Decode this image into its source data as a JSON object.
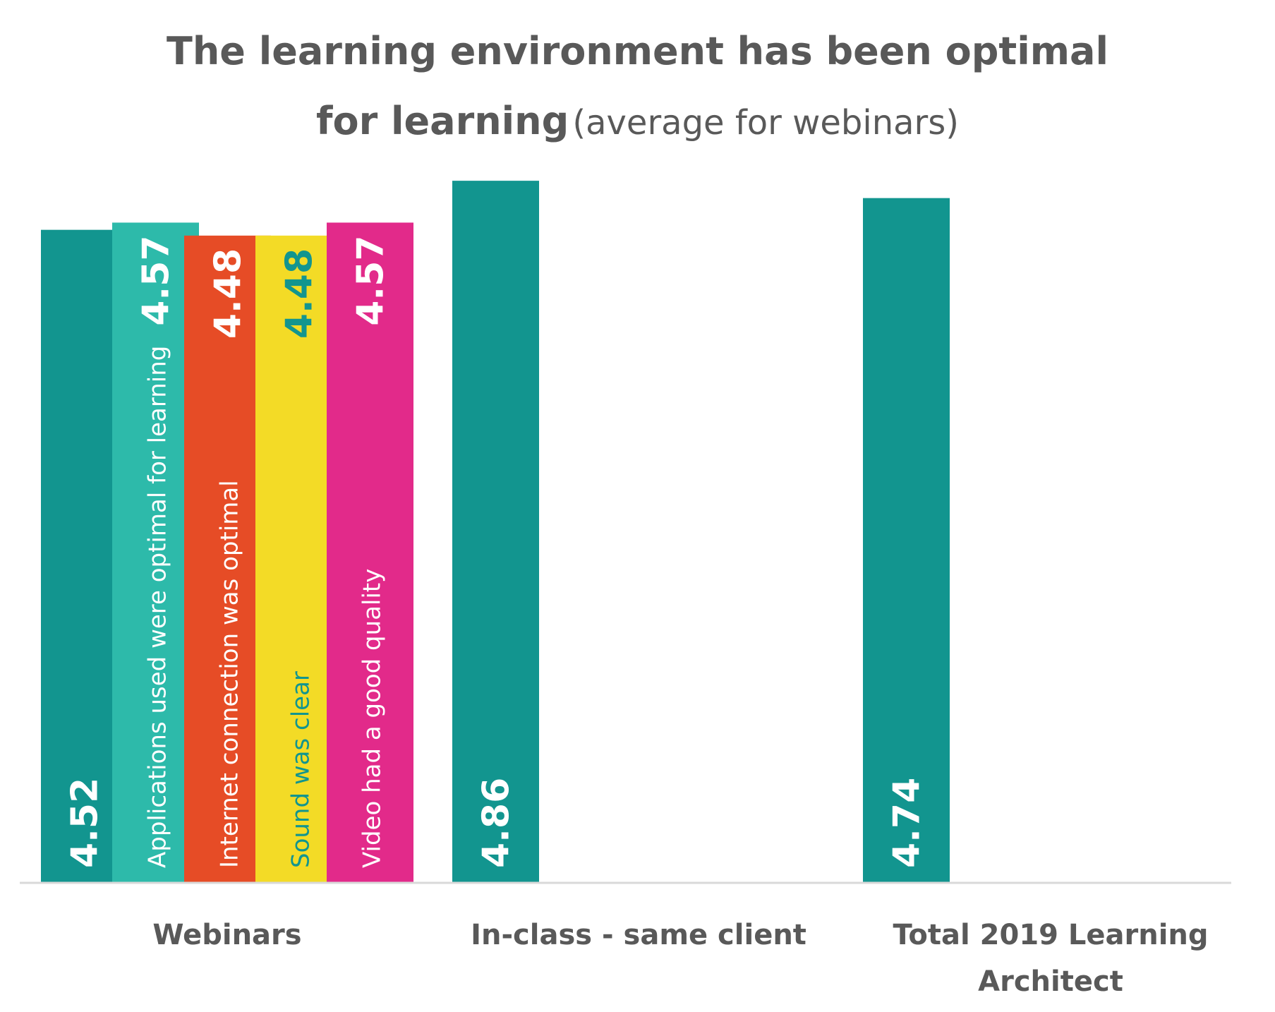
{
  "title": {
    "line1": "The learning environment has been optimal",
    "line2_bold": "for learning",
    "line2_light": "(average for webinars)"
  },
  "colors": {
    "teal": "#12958F",
    "turquoise": "#2DBAAA",
    "orange": "#E64C26",
    "yellow": "#F3DB26",
    "magenta": "#E22A8A",
    "axis": "#d9d9d9",
    "text": "#595959"
  },
  "chart_data": {
    "type": "bar",
    "title": "The learning environment has been optimal for learning (average for webinars)",
    "categories": [
      "Webinars",
      "In-class - same client",
      "Total 2019 Learning Architect"
    ],
    "bars": [
      {
        "category": "Webinars",
        "value": 4.52,
        "value_label": "4.52",
        "label": "",
        "color": "#12958F",
        "value_color": "#ffffff",
        "text_color": "#ffffff"
      },
      {
        "category": "Webinars",
        "value": 4.57,
        "value_label": "4.57",
        "label": "Applications used were optimal for learning",
        "color": "#2DBAAA",
        "value_color": "#ffffff",
        "text_color": "#ffffff"
      },
      {
        "category": "Webinars",
        "value": 4.48,
        "value_label": "4.48",
        "label": "Internet connection was optimal",
        "color": "#E64C26",
        "value_color": "#ffffff",
        "text_color": "#ffffff"
      },
      {
        "category": "Webinars",
        "value": 4.48,
        "value_label": "4.48",
        "label": "Sound was clear",
        "color": "#F3DB26",
        "value_color": "#12958F",
        "text_color": "#12958F"
      },
      {
        "category": "Webinars",
        "value": 4.57,
        "value_label": "4.57",
        "label": "Video had a good quality",
        "color": "#E22A8A",
        "value_color": "#ffffff",
        "text_color": "#ffffff"
      },
      {
        "category": "In-class - same client",
        "value": 4.86,
        "value_label": "4.86",
        "label": "",
        "color": "#12958F",
        "value_color": "#ffffff",
        "text_color": "#ffffff"
      },
      {
        "category": "Total 2019 Learning Architect",
        "value": 4.74,
        "value_label": "4.74",
        "label": "",
        "color": "#12958F",
        "value_color": "#ffffff",
        "text_color": "#ffffff"
      }
    ],
    "category_labels": [
      [
        "Webinars"
      ],
      [
        "In-class - same client"
      ],
      [
        "Total 2019 Learning",
        "Architect"
      ]
    ],
    "ylim": [
      0,
      5
    ],
    "grid": false,
    "legend": "none"
  }
}
